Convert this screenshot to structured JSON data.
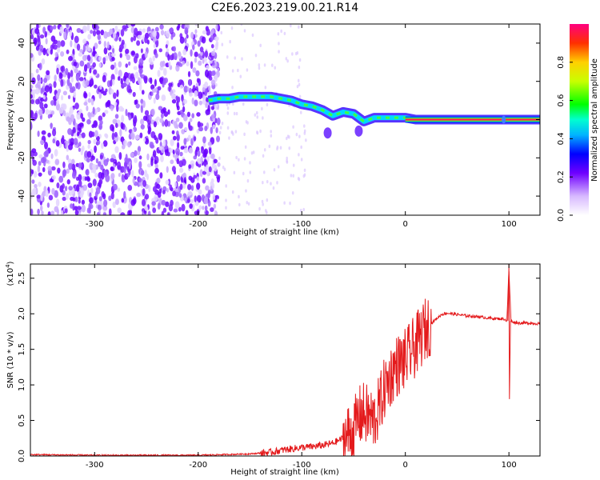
{
  "title": "C2E6.2023.219.00.21.R14",
  "top_panel": {
    "xlabel": "Height of straight line (km)",
    "ylabel": "Frequency (Hz)",
    "xticks": [
      "-300",
      "-200",
      "-100",
      "0",
      "100"
    ],
    "yticks": [
      "40",
      "20",
      "0",
      "-20",
      "-40"
    ],
    "colorbar": {
      "label": "Normalized spectral amplitude",
      "ticks": [
        "0.0",
        "0.2",
        "0.4",
        "0.6",
        "0.8"
      ]
    }
  },
  "bottom_panel": {
    "xlabel": "Height of straight line (km)",
    "ylabel": "SNR (10 * v/v)",
    "multiplier": "(x10",
    "multiplier_exp": "4",
    "multiplier_close": ")",
    "xticks": [
      "-300",
      "-200",
      "-100",
      "0",
      "100"
    ],
    "yticks": [
      "0.0",
      "0.5",
      "1.0",
      "1.5",
      "2.0",
      "2.5"
    ]
  },
  "chart_data": [
    {
      "type": "heatmap",
      "title": "C2E6.2023.219.00.21.R14",
      "xlabel": "Height of straight line (km)",
      "ylabel": "Frequency (Hz)",
      "xlim": [
        -362,
        130
      ],
      "ylim": [
        -50,
        50
      ],
      "colorbar_range": [
        0,
        1
      ],
      "ridge": {
        "x": [
          -190,
          -180,
          -170,
          -160,
          -150,
          -140,
          -130,
          -120,
          -110,
          -100,
          -90,
          -80,
          -70,
          -60,
          -50,
          -40,
          -30,
          -20,
          -10,
          0,
          10,
          50,
          100,
          130
        ],
        "y": [
          10,
          11,
          11,
          12,
          12,
          12,
          12,
          11,
          10,
          8,
          7,
          5,
          2,
          4,
          3,
          -1,
          1,
          1,
          1,
          1,
          0,
          0,
          0,
          0
        ]
      }
    },
    {
      "type": "line",
      "xlabel": "Height of straight line (km)",
      "ylabel": "SNR (10 * v/v)",
      "xlim": [
        -362,
        130
      ],
      "ylim": [
        0,
        2.7
      ],
      "y_scale_factor": 10000,
      "series": [
        {
          "color": "#e41a1c",
          "x": [
            -362,
            -300,
            -200,
            -150,
            -130,
            -120,
            -110,
            -100,
            -90,
            -80,
            -70,
            -60,
            -50,
            -45,
            -40,
            -35,
            -30,
            -25,
            -20,
            -15,
            -10,
            -5,
            0,
            10,
            20,
            30,
            35,
            40,
            50,
            60,
            70,
            80,
            90,
            95,
            98,
            100,
            102,
            105,
            110,
            120,
            130
          ],
          "y": [
            0.02,
            0.01,
            0.01,
            0.03,
            0.05,
            0.08,
            0.1,
            0.12,
            0.13,
            0.15,
            0.18,
            0.25,
            0.35,
            0.55,
            0.6,
            0.55,
            0.5,
            0.7,
            0.95,
            1.1,
            1.25,
            1.3,
            1.35,
            1.55,
            1.8,
            1.93,
            1.99,
            2.01,
            1.99,
            1.97,
            1.96,
            1.94,
            1.93,
            1.93,
            1.9,
            2.6,
            1.9,
            1.88,
            1.87,
            1.87,
            1.86
          ]
        }
      ]
    }
  ]
}
